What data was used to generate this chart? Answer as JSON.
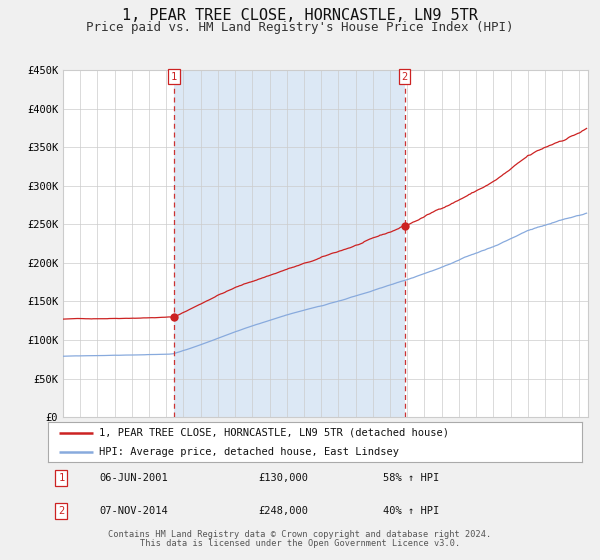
{
  "title": "1, PEAR TREE CLOSE, HORNCASTLE, LN9 5TR",
  "subtitle": "Price paid vs. HM Land Registry's House Price Index (HPI)",
  "title_fontsize": 11,
  "subtitle_fontsize": 9,
  "background_color": "#f0f0f0",
  "plot_bg_color": "#ffffff",
  "highlight_bg_color": "#dce8f5",
  "red_line_color": "#cc2222",
  "blue_line_color": "#88aadd",
  "marker_color": "#cc2222",
  "dashed_line_color": "#cc3333",
  "grid_color": "#cccccc",
  "ylim": [
    0,
    450000
  ],
  "yticks": [
    0,
    50000,
    100000,
    150000,
    200000,
    250000,
    300000,
    350000,
    400000,
    450000
  ],
  "xlim_start": 1995.0,
  "xlim_end": 2025.5,
  "xticks": [
    1995,
    1996,
    1997,
    1998,
    1999,
    2000,
    2001,
    2002,
    2003,
    2004,
    2005,
    2006,
    2007,
    2008,
    2009,
    2010,
    2011,
    2012,
    2013,
    2014,
    2015,
    2016,
    2017,
    2018,
    2019,
    2020,
    2021,
    2022,
    2023,
    2024,
    2025
  ],
  "sale1_date_num": 2001.44,
  "sale1_price": 130000,
  "sale1_label": "1",
  "sale1_date_str": "06-JUN-2001",
  "sale1_price_str": "£130,000",
  "sale1_pct": "58% ↑ HPI",
  "sale2_date_num": 2014.85,
  "sale2_price": 248000,
  "sale2_label": "2",
  "sale2_date_str": "07-NOV-2014",
  "sale2_price_str": "£248,000",
  "sale2_pct": "40% ↑ HPI",
  "legend_line1": "1, PEAR TREE CLOSE, HORNCASTLE, LN9 5TR (detached house)",
  "legend_line2": "HPI: Average price, detached house, East Lindsey",
  "footer1": "Contains HM Land Registry data © Crown copyright and database right 2024.",
  "footer2": "This data is licensed under the Open Government Licence v3.0."
}
